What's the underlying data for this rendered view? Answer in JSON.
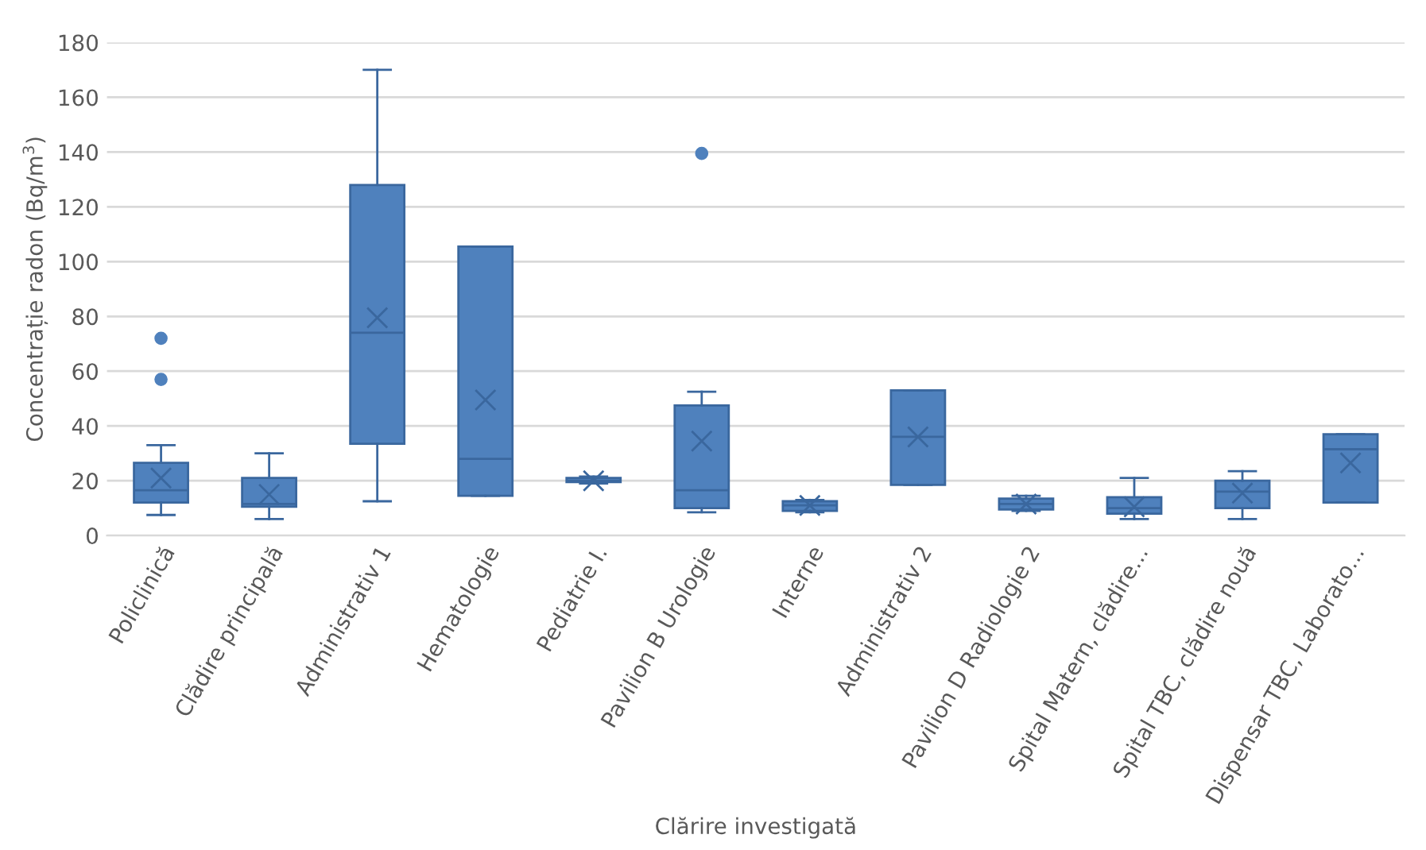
{
  "chart_data": {
    "type": "box",
    "xlabel": "Clărire investigată",
    "ylabel": "Concentrație radon (Bq/m$^{3}$)",
    "categories": [
      "Policlinică",
      "Clădire principală",
      "Administrativ 1",
      "Hematologie",
      "Pediatrie I.",
      "Pavilion B Urologie",
      "Interne",
      "Administrativ 2",
      "Pavilion D Radiologie 2",
      "Spital Matern, clădire...",
      "Spital TBC, clădire nouă",
      "Dispensar TBC, Laborato..."
    ],
    "color": "#4f81bd",
    "boxes": [
      {
        "low": 7.5,
        "q1": 12,
        "median": 16.5,
        "q3": 26.5,
        "high": 33,
        "mean": 21,
        "outliers": [
          57,
          72
        ]
      },
      {
        "low": 6,
        "q1": 10.5,
        "median": 11.5,
        "q3": 21,
        "high": 30,
        "mean": 15
      },
      {
        "low": 12.5,
        "q1": 33.5,
        "median": 74,
        "q3": 128,
        "high": 170,
        "mean": 79.5
      },
      {
        "low": 14.5,
        "q1": 14.5,
        "median": 28,
        "q3": 105.5,
        "high": 105.5,
        "mean": 49.5
      },
      {
        "low": 19,
        "q1": 19.5,
        "median": 20,
        "q3": 21,
        "high": 21.5,
        "mean": 20
      },
      {
        "low": 8.5,
        "q1": 10,
        "median": 16.5,
        "q3": 47.5,
        "high": 52.5,
        "mean": 34.5,
        "outliers": [
          139.5
        ]
      },
      {
        "low": 8.5,
        "q1": 9,
        "median": 11,
        "q3": 12.5,
        "high": 13,
        "mean": 11
      },
      {
        "low": 18.5,
        "q1": 18.5,
        "median": 36,
        "q3": 53,
        "high": 53,
        "mean": 36
      },
      {
        "low": 9,
        "q1": 9.5,
        "median": 11.5,
        "q3": 13.5,
        "high": 14.5,
        "mean": 11.5
      },
      {
        "low": 6,
        "q1": 8,
        "median": 10,
        "q3": 14,
        "high": 21,
        "mean": 10.5
      },
      {
        "low": 6,
        "q1": 10,
        "median": 16,
        "q3": 20,
        "high": 23.5,
        "mean": 15.5
      },
      {
        "low": 12,
        "q1": 12,
        "median": 31.5,
        "q3": 37,
        "high": 37,
        "mean": 26.5
      }
    ],
    "ylim": [
      0,
      180
    ],
    "yticks": [
      0,
      20,
      40,
      60,
      80,
      100,
      120,
      140,
      160,
      180
    ],
    "grid": "y",
    "legend": false
  }
}
